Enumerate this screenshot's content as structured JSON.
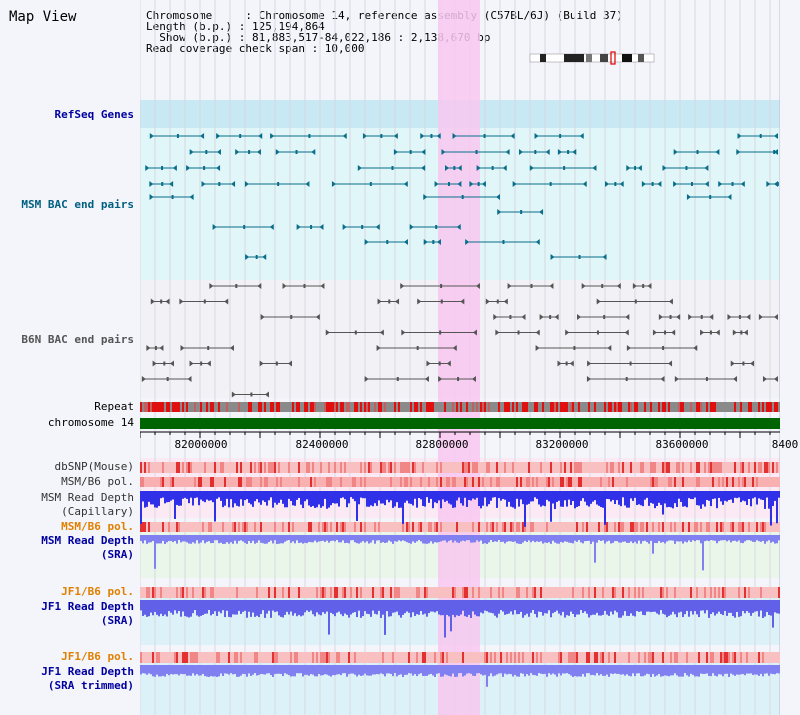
{
  "title": "Map View",
  "info": {
    "chromosome": "Chromosome     : Chromosome 14, reference assembly (C57BL/6J) (Build 37)",
    "length": "Length (b.p.) : 125,194,864",
    "show": "  Show (b.p.) : 81,883,517-84,022,186 : 2,138,670 bp",
    "coverage": "Read coverage check span : 10,000"
  },
  "tracks": {
    "refseq": "RefSeq Genes",
    "msm_bac": "MSM BAC end pairs",
    "b6n_bac": "B6N BAC end pairs",
    "repeat": "Repeat",
    "chromosome": "chromosome 14",
    "dbsnp": "dbSNP(Mouse)",
    "msm_b6_pol_1": "MSM/B6 pol.",
    "msm_depth_cap": "MSM Read Depth\n(Capillary)",
    "msm_b6_pol_2": "MSM/B6 pol.",
    "msm_depth_sra": "MSM Read Depth\n(SRA)",
    "jf1_b6_pol_1": "JF1/B6 pol.",
    "jf1_depth_sra": "JF1 Read Depth\n(SRA)",
    "jf1_b6_pol_2": "JF1/B6 pol.",
    "jf1_depth_trim": "JF1 Read Depth\n(SRA trimmed)"
  },
  "axis": {
    "ticks": [
      "82000000",
      "82400000",
      "82800000",
      "83200000",
      "83600000",
      "8400"
    ]
  },
  "colors": {
    "refseq": "#0a6e8a",
    "msm_label": "#006080",
    "b6n": "#555555",
    "depth_label": "#0000a0",
    "pol_label": "#e08000",
    "highlight": "#f8c8f0",
    "chromosome": "#006400"
  }
}
